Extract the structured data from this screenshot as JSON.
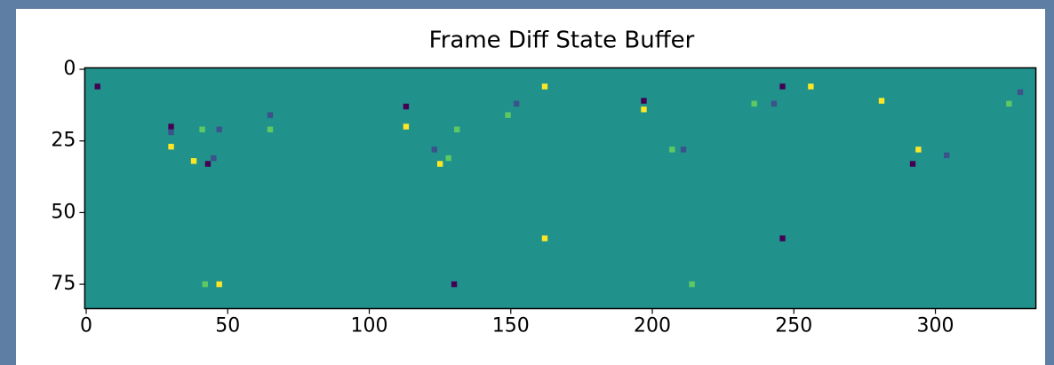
{
  "chart_data": {
    "type": "heatmap",
    "title": "Frame Diff State Buffer",
    "colormap": "viridis",
    "x": [
      4,
      30,
      30,
      30,
      38,
      41,
      43,
      45,
      47,
      65,
      65,
      113,
      113,
      123,
      125,
      128,
      131,
      149,
      152,
      162,
      197,
      197,
      207,
      211,
      236,
      243,
      246,
      256,
      281,
      292,
      294,
      304,
      326,
      330,
      162,
      246,
      42,
      47,
      130,
      214
    ],
    "y": [
      6,
      20,
      27,
      22,
      32,
      21,
      33,
      31,
      21,
      16,
      21,
      13,
      20,
      28,
      33,
      31,
      21,
      16,
      12,
      6,
      11,
      14,
      28,
      28,
      12,
      12,
      6,
      6,
      11,
      33,
      28,
      30,
      12,
      8,
      59,
      59,
      75,
      75,
      75,
      75
    ],
    "values": [
      -1,
      -1,
      1,
      -0.5,
      1,
      0.5,
      -1,
      -0.5,
      -0.5,
      -0.5,
      0.5,
      -1,
      1,
      -0.5,
      1,
      0.5,
      0.5,
      0.5,
      -0.5,
      1,
      -1,
      1,
      0.5,
      -0.5,
      0.5,
      -0.5,
      -1,
      1,
      1,
      -1,
      1,
      -0.5,
      0.5,
      -0.5,
      1,
      -1,
      0.5,
      1,
      -1,
      0.5
    ],
    "xlim": [
      -0.5,
      335.5
    ],
    "ylim": [
      83.5,
      -0.5
    ],
    "xticks": [
      0,
      50,
      100,
      150,
      200,
      250,
      300
    ],
    "yticks": [
      0,
      25,
      50,
      75
    ]
  }
}
